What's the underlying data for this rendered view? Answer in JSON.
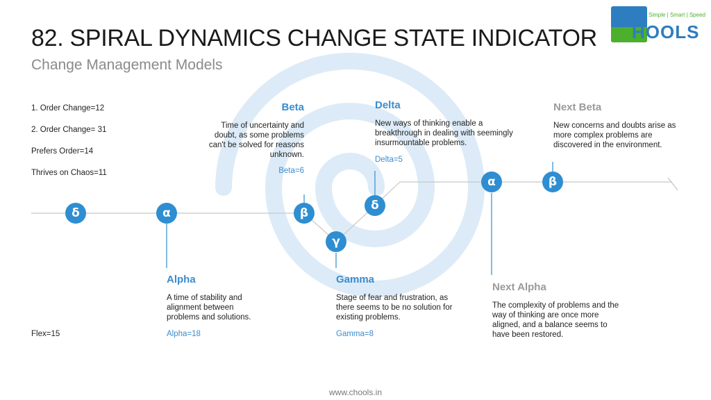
{
  "header": {
    "title": "82. SPIRAL DYNAMICS CHANGE STATE INDICATOR",
    "subtitle": "Change Management Models"
  },
  "logo": {
    "tagline": "Simple | Smart | Speed",
    "word": "HOOLS",
    "colors": {
      "blue": "#2e7dc0",
      "green": "#4caf2e"
    }
  },
  "stats": {
    "order_change_1": "1. Order Change=12",
    "order_change_2": "2. Order Change= 31",
    "prefers_order": "Prefers Order=14",
    "thrives_chaos": "Thrives on Chaos=11",
    "flex": "Flex=15"
  },
  "nodes": {
    "delta_start": "δ",
    "alpha": "α",
    "beta": "β",
    "gamma": "γ",
    "delta": "δ",
    "next_alpha": "α",
    "next_beta": "β"
  },
  "stages": {
    "beta": {
      "title": "Beta",
      "desc": "Time of uncertainty and doubt, as some problems can't be solved for reasons unknown.",
      "value": "Beta=6"
    },
    "delta": {
      "title": "Delta",
      "desc": "New ways of thinking enable a breakthrough in dealing with seemingly insurmountable problems.",
      "value": "Delta=5"
    },
    "next_beta": {
      "title": "Next Beta",
      "desc": "New concerns and doubts arise as more complex problems are discovered in the environment."
    },
    "alpha": {
      "title": "Alpha",
      "desc": "A time of stability and alignment between problems and solutions.",
      "value": "Alpha=18"
    },
    "gamma": {
      "title": "Gamma",
      "desc": "Stage of fear and frustration, as there seems to be no solution for existing problems.",
      "value": "Gamma=8"
    },
    "next_alpha": {
      "title": "Next Alpha",
      "desc": "The complexity of problems and the way of thinking are once more aligned, and a balance seems to have been restored."
    }
  },
  "footer": {
    "url": "www.chools.in"
  },
  "colors": {
    "accent": "#2e8ed1",
    "spiral": "#dcebf7",
    "line": "#cccccc",
    "grey_heading": "#9a9a9a"
  }
}
